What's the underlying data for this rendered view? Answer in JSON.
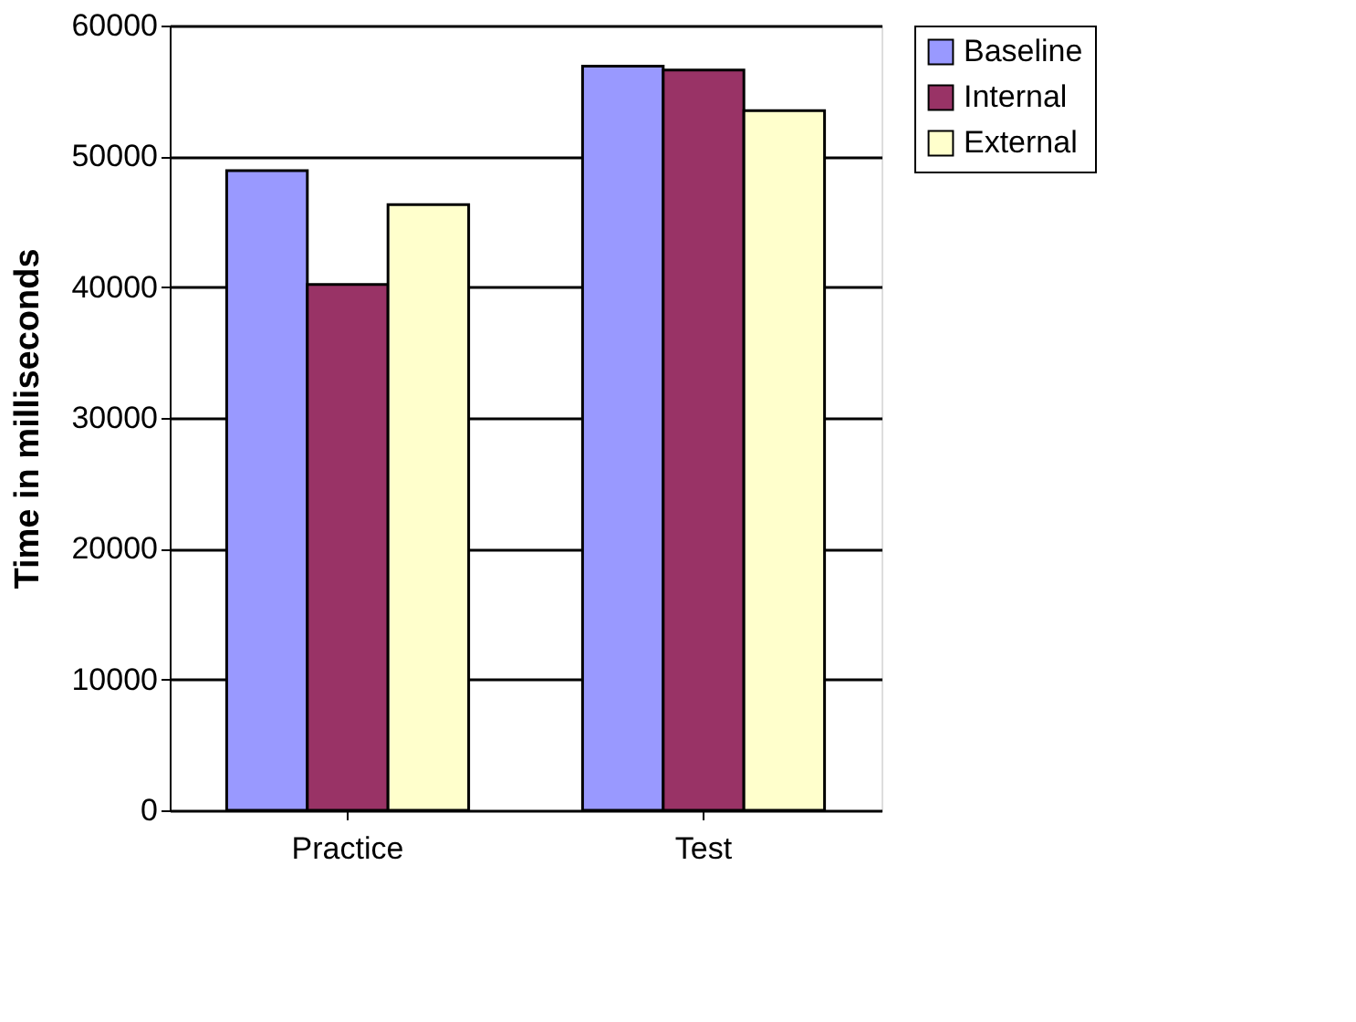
{
  "chart_data": {
    "type": "bar",
    "ylabel": "Time in milliseconds",
    "categories": [
      "Practice",
      "Test"
    ],
    "series": [
      {
        "name": "Baseline",
        "color": "#9999ff",
        "values": [
          48900,
          56900
        ]
      },
      {
        "name": "Internal",
        "color": "#993366",
        "values": [
          40200,
          56600
        ]
      },
      {
        "name": "External",
        "color": "#ffffcc",
        "values": [
          46300,
          53500
        ]
      }
    ],
    "ylim": [
      0,
      60000
    ],
    "yticks": [
      0,
      10000,
      20000,
      30000,
      40000,
      50000,
      60000
    ],
    "grid": "y",
    "legend": "right"
  }
}
